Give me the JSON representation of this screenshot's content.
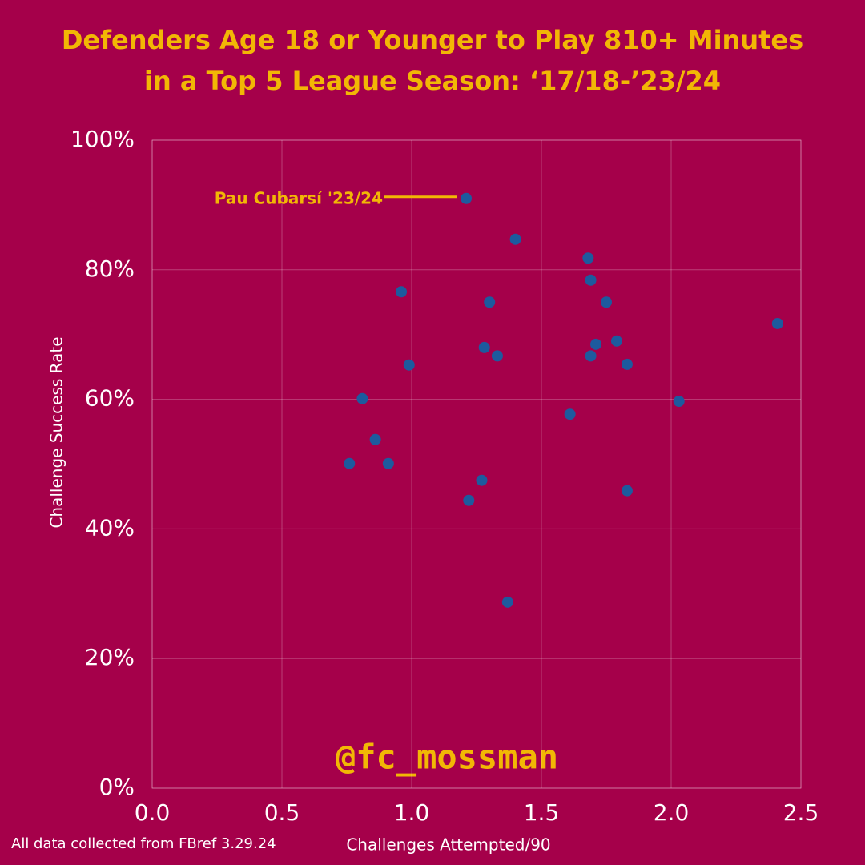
{
  "chart_data": {
    "type": "scatter",
    "title": [
      "Defenders Age 18 or Younger to Play 810+ Minutes",
      "in a Top 5 League Season: ‘17/18-’23/24"
    ],
    "x_label": "Challenges Attempted/90",
    "y_label": "Challenge Success Rate",
    "source": "All data collected from FBref 3.29.24",
    "watermark": "@fc_mossman",
    "annotation": "Pau Cubarsí '23/24",
    "xlim": [
      0,
      2.5
    ],
    "ylim": [
      0,
      100
    ],
    "xticks": [
      {
        "value": 0,
        "label": "0.0"
      },
      0.5,
      {
        "value": 1,
        "label": "1.0"
      },
      1.5,
      {
        "value": 2,
        "label": "2.0"
      },
      2.5
    ],
    "yticks": [
      {
        "value": 0,
        "label": "0%"
      },
      {
        "value": 20,
        "label": "20%"
      },
      {
        "value": 40,
        "label": "40%"
      },
      {
        "value": 60,
        "label": "60%"
      },
      {
        "value": 80,
        "label": "80%"
      },
      {
        "value": 100,
        "label": "100%"
      }
    ],
    "grid": true,
    "series": [
      {
        "color": "#1d5a9e",
        "x": [
          1.21,
          1.4,
          1.68,
          1.69,
          0.96,
          1.3,
          1.75,
          2.41,
          1.28,
          1.33,
          1.71,
          1.79,
          1.69,
          0.99,
          1.83,
          0.81,
          2.03,
          1.61,
          0.86,
          0.76,
          0.91,
          1.27,
          1.22,
          1.83,
          1.37
        ],
        "values": [
          91.0,
          84.7,
          81.8,
          78.4,
          76.6,
          75.0,
          75.0,
          71.7,
          68.0,
          66.7,
          68.5,
          69.0,
          66.7,
          65.3,
          65.4,
          60.1,
          59.7,
          57.7,
          53.8,
          50.1,
          50.1,
          47.5,
          44.4,
          45.9,
          28.7
        ]
      }
    ]
  }
}
